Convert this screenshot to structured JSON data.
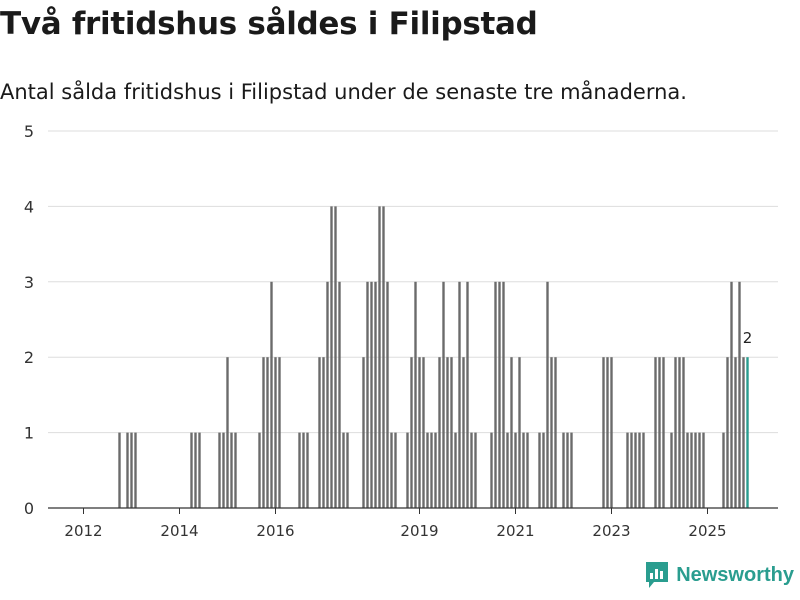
{
  "header": {
    "title": "Två fritidshus såldes i Filipstad",
    "subtitle": "Antal sålda fritidshus i Filipstad under de senaste tre månaderna."
  },
  "brand": {
    "name": "Newsworthy"
  },
  "colors": {
    "bar": "#6b6b6b",
    "highlight": "#2a9d8f",
    "grid": "#dddddd",
    "axis": "#333333"
  },
  "chart_data": {
    "type": "bar",
    "title": "Två fritidshus såldes i Filipstad",
    "xlabel": "",
    "ylabel": "",
    "ylim": [
      0,
      5
    ],
    "yticks": [
      0,
      1,
      2,
      3,
      4,
      5
    ],
    "xticks": [
      {
        "label": "2012",
        "index": 6
      },
      {
        "label": "2014",
        "index": 30
      },
      {
        "label": "2016",
        "index": 54
      },
      {
        "label": "2019",
        "index": 90
      },
      {
        "label": "2021",
        "index": 114
      },
      {
        "label": "2023",
        "index": 138
      },
      {
        "label": "2025",
        "index": 162
      }
    ],
    "start": "2011-01",
    "values": [
      0,
      0,
      0,
      0,
      0,
      0,
      0,
      0,
      0,
      0,
      0,
      0,
      0,
      0,
      0,
      1,
      0,
      1,
      1,
      1,
      0,
      0,
      0,
      0,
      0,
      0,
      0,
      0,
      0,
      0,
      0,
      0,
      0,
      1,
      1,
      1,
      0,
      0,
      0,
      0,
      1,
      1,
      2,
      1,
      1,
      0,
      0,
      0,
      0,
      0,
      1,
      2,
      2,
      3,
      2,
      2,
      0,
      0,
      0,
      0,
      1,
      1,
      1,
      0,
      0,
      2,
      2,
      3,
      4,
      4,
      3,
      1,
      1,
      0,
      0,
      0,
      2,
      3,
      3,
      3,
      4,
      4,
      3,
      1,
      1,
      0,
      0,
      1,
      2,
      3,
      2,
      2,
      1,
      1,
      1,
      2,
      3,
      2,
      2,
      1,
      3,
      2,
      3,
      1,
      1,
      0,
      0,
      0,
      1,
      3,
      3,
      3,
      1,
      2,
      1,
      2,
      1,
      1,
      0,
      0,
      1,
      1,
      3,
      2,
      2,
      0,
      1,
      1,
      1,
      0,
      0,
      0,
      0,
      0,
      0,
      0,
      2,
      2,
      2,
      0,
      0,
      0,
      1,
      1,
      1,
      1,
      1,
      0,
      0,
      2,
      2,
      2,
      0,
      1,
      2,
      2,
      2,
      1,
      1,
      1,
      1,
      1,
      0,
      0,
      0,
      0,
      1,
      2,
      3,
      2,
      3,
      2,
      2
    ],
    "highlight_last": true,
    "last_label": "2"
  }
}
